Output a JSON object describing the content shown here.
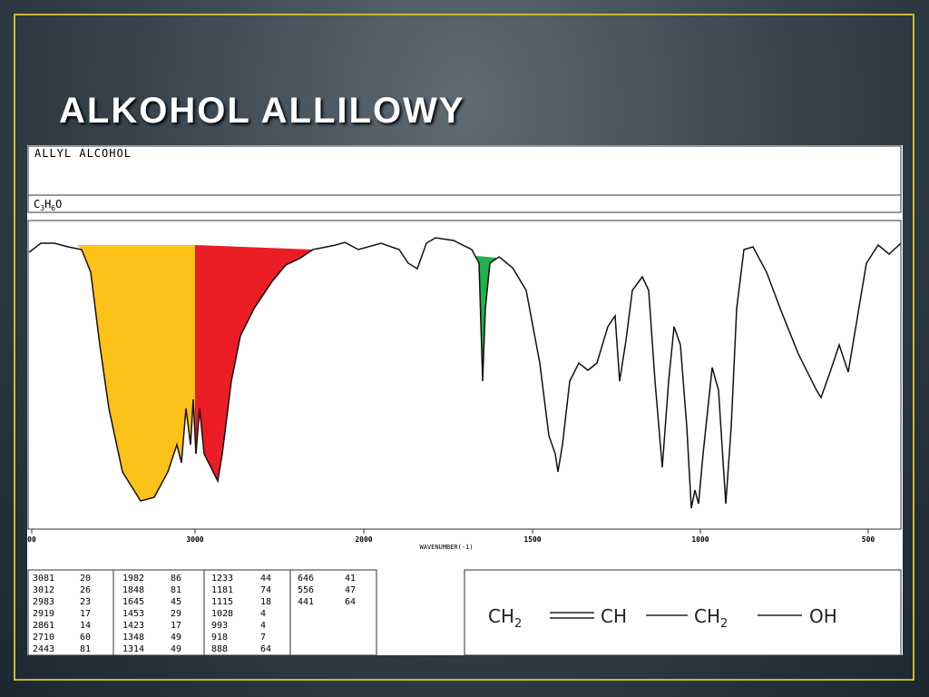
{
  "title": "ALKOHOL ALLILOWY",
  "spectrum": {
    "name": "ALLYL ALCOHOL",
    "formula": {
      "parts": [
        "C",
        "3",
        "H",
        "6",
        "O"
      ]
    },
    "x_tick_labels": [
      "00",
      "3000",
      "2000",
      "1500",
      "1000",
      "500"
    ],
    "x_axis_label": "WAVENUMBER(-1)"
  },
  "peak_table": {
    "columns": [
      [
        [
          3081,
          20
        ],
        [
          3012,
          26
        ],
        [
          2983,
          23
        ],
        [
          2919,
          17
        ],
        [
          2861,
          14
        ],
        [
          2710,
          60
        ],
        [
          2443,
          81
        ]
      ],
      [
        [
          1982,
          86
        ],
        [
          1848,
          81
        ],
        [
          1645,
          45
        ],
        [
          1453,
          29
        ],
        [
          1423,
          17
        ],
        [
          1348,
          49
        ],
        [
          1314,
          49
        ]
      ],
      [
        [
          1233,
          44
        ],
        [
          1181,
          74
        ],
        [
          1115,
          18
        ],
        [
          1028,
          4
        ],
        [
          993,
          4
        ],
        [
          918,
          7
        ],
        [
          888,
          64
        ]
      ],
      [
        [
          646,
          41
        ],
        [
          556,
          47
        ],
        [
          441,
          64
        ]
      ]
    ]
  },
  "structure": {
    "parts": [
      "CH",
      "2",
      "CH",
      "CH",
      "2",
      "OH"
    ]
  }
}
